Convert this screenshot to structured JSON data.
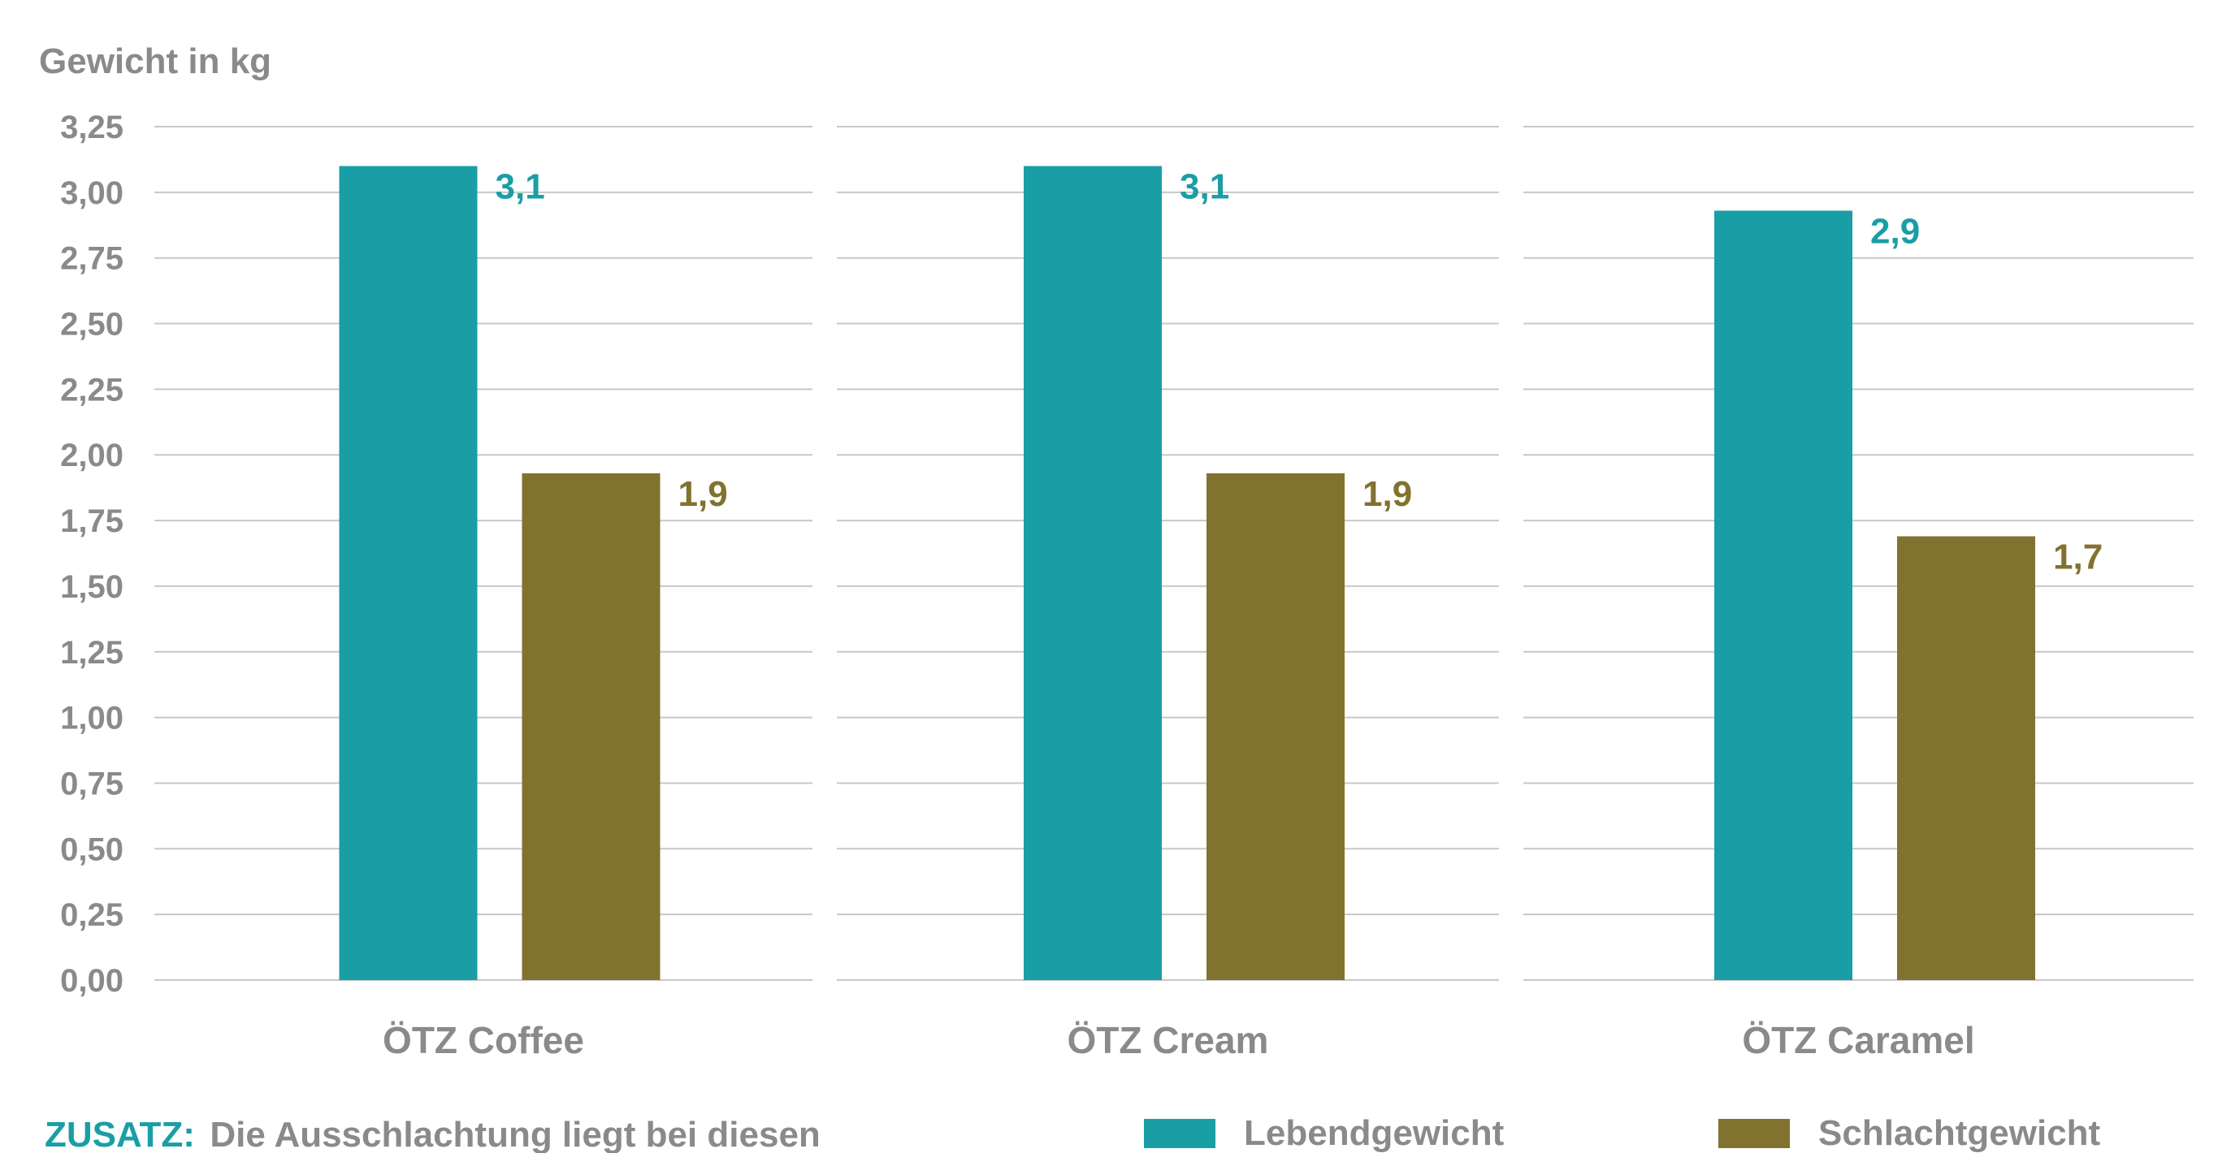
{
  "chart_data": {
    "type": "bar",
    "ylabel": "Gewicht in kg",
    "ylim": [
      0,
      3.25
    ],
    "ytick_step": 0.25,
    "yticks": [
      "0,00",
      "0,25",
      "0,50",
      "0,75",
      "1,00",
      "1,25",
      "1,50",
      "1,75",
      "2,00",
      "2,25",
      "2,50",
      "2,75",
      "3,00",
      "3,25"
    ],
    "grid": true,
    "categories": [
      "ÖTZ Coffee",
      "ÖTZ Cream",
      "ÖTZ Caramel"
    ],
    "series": [
      {
        "name": "Lebendgewicht",
        "color": "#1a9ea6",
        "values": [
          3.1,
          3.1,
          2.93
        ],
        "labels": [
          "3,1",
          "3,1",
          "2,9"
        ]
      },
      {
        "name": "Schlachtgewicht",
        "color": "#82722f",
        "values": [
          1.93,
          1.93,
          1.69
        ],
        "labels": [
          "1,9",
          "1,9",
          "1,7"
        ]
      }
    ],
    "legend_position": "bottom-right"
  },
  "note": {
    "key": "ZUSATZ:",
    "text": "Die Ausschlachtung liegt bei diesen",
    "key_color": "#1a9ea6"
  },
  "colors": {
    "text_gray": "#8a8a8a",
    "grid": "#c8c8c8"
  }
}
